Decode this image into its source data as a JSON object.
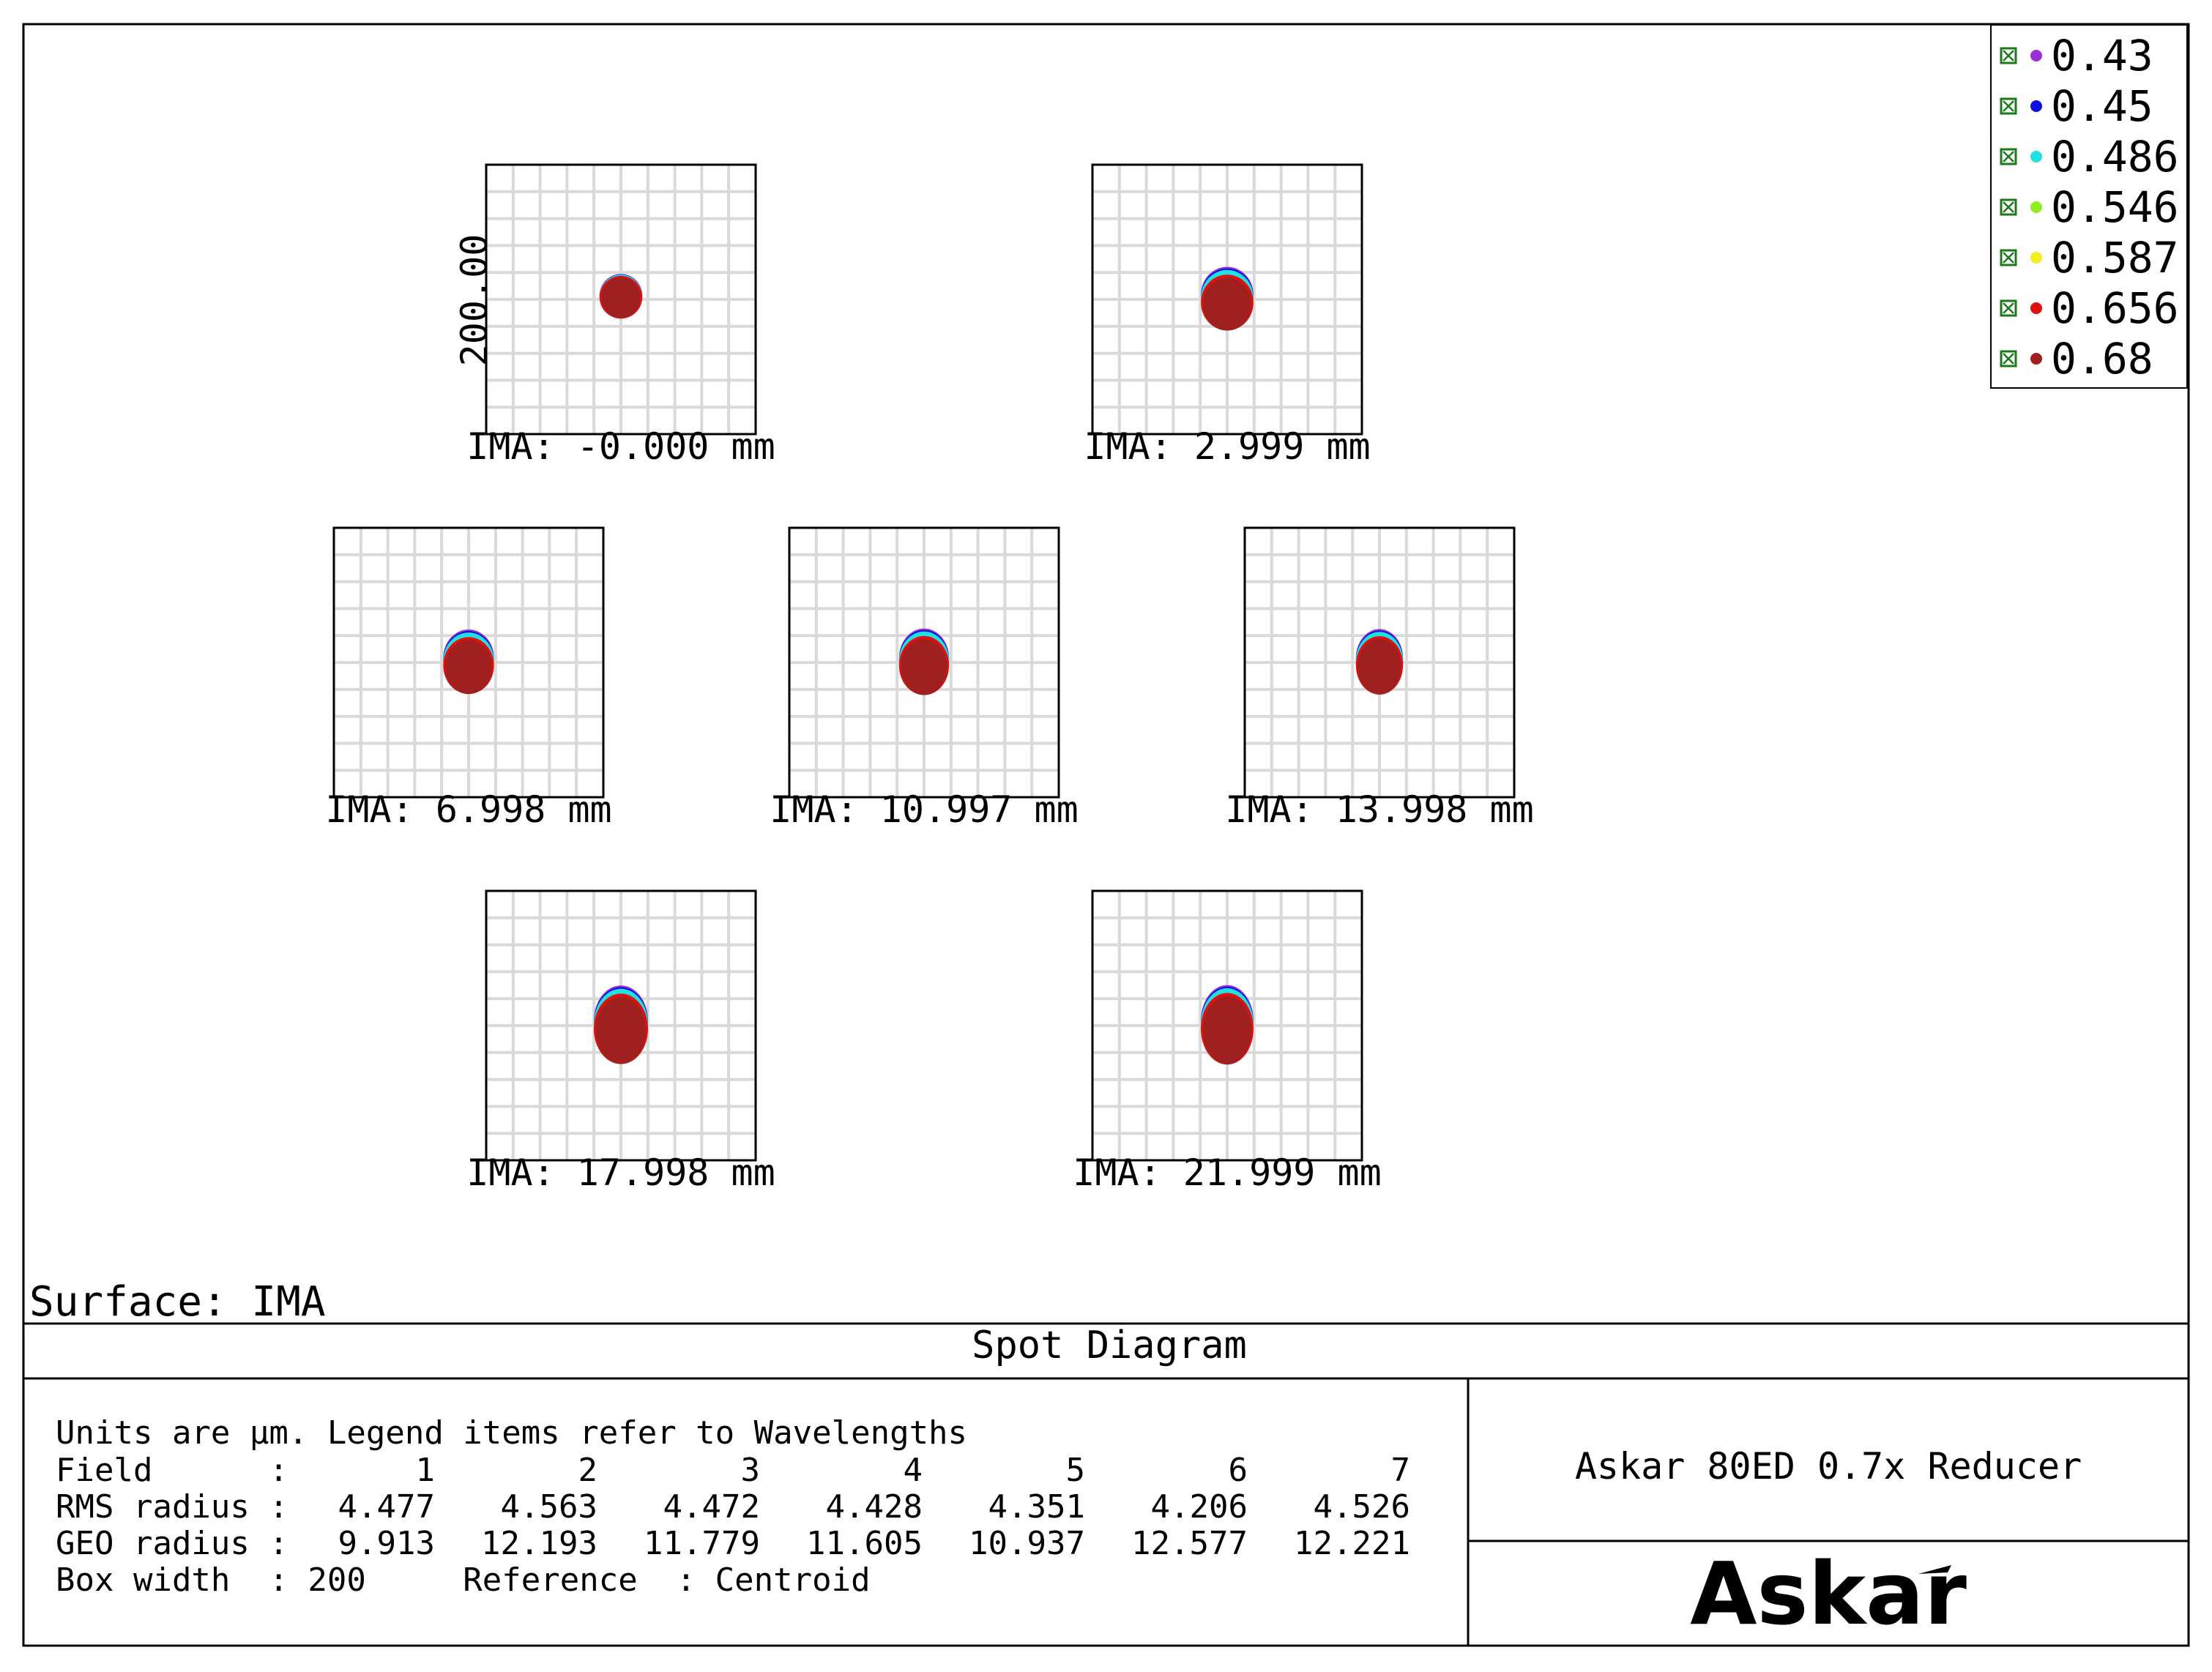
{
  "chart_data": {
    "type": "scatter",
    "title": "Spot Diagram",
    "surface_label": "Surface: IMA",
    "box_width_um": 200,
    "scale_bar_label": "200.00",
    "grid": true,
    "legend_placement": "top-right",
    "legend": [
      "0.43",
      "0.45",
      "0.486",
      "0.546",
      "0.587",
      "0.656",
      "0.68"
    ],
    "wavelength_colors": [
      "#9b30d9",
      "#1010e0",
      "#20e0e0",
      "#90ee20",
      "#f0f020",
      "#e01010",
      "#a02020"
    ],
    "fields": [
      {
        "label": "IMA: -0.000 mm",
        "image_height_mm": -0.0,
        "rms_radius_um": 4.477,
        "geo_radius_um": 9.913
      },
      {
        "label": "IMA: 2.999 mm",
        "image_height_mm": 2.999,
        "rms_radius_um": 4.563,
        "geo_radius_um": 12.193
      },
      {
        "label": "IMA: 6.998 mm",
        "image_height_mm": 6.998,
        "rms_radius_um": 4.472,
        "geo_radius_um": 11.779
      },
      {
        "label": "IMA: 10.997 mm",
        "image_height_mm": 10.997,
        "rms_radius_um": 4.428,
        "geo_radius_um": 11.605
      },
      {
        "label": "IMA: 13.998 mm",
        "image_height_mm": 13.998,
        "rms_radius_um": 4.351,
        "geo_radius_um": 10.937
      },
      {
        "label": "IMA: 17.998 mm",
        "image_height_mm": 17.998,
        "rms_radius_um": 4.206,
        "geo_radius_um": 12.577
      },
      {
        "label": "IMA: 21.999 mm",
        "image_height_mm": 21.999,
        "rms_radius_um": 4.526,
        "geo_radius_um": 12.221
      }
    ]
  },
  "info": {
    "line1": "Units are µm. Legend items refer to Wavelengths",
    "field_label": "Field      :",
    "field_numbers": [
      "1",
      "2",
      "3",
      "4",
      "5",
      "6",
      "7"
    ],
    "rms_label": "RMS radius :",
    "rms_values": [
      "4.477",
      "4.563",
      "4.472",
      "4.428",
      "4.351",
      "4.206",
      "4.526"
    ],
    "geo_label": "GEO radius :",
    "geo_values": [
      "9.913",
      "12.193",
      "11.779",
      "11.605",
      "10.937",
      "12.577",
      "12.221"
    ],
    "box_line": "Box width  : 200     Reference  : Centroid"
  },
  "design_name": "Askar 80ED 0.7x Reducer",
  "logo_text": "Askar"
}
